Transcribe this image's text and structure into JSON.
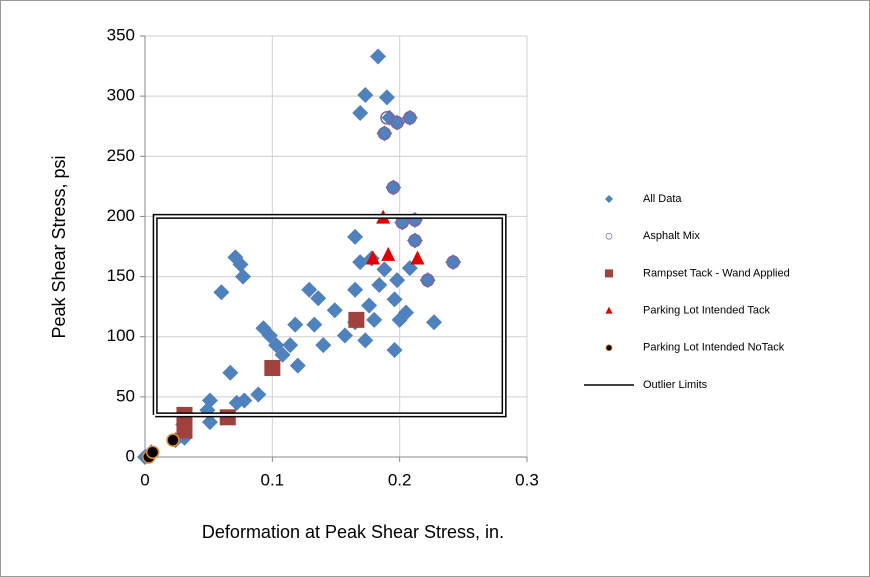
{
  "chart_data": {
    "type": "scatter",
    "x_label": "Deformation at Peak Shear Stress, in.",
    "y_label": "Peak Shear Stress, psi",
    "xlim": [
      0,
      0.3
    ],
    "ylim": [
      0,
      350
    ],
    "xticks": [
      0,
      0.1,
      0.2,
      0.3
    ],
    "yticks": [
      0,
      50,
      100,
      150,
      200,
      250,
      300,
      350
    ],
    "grid": true,
    "legend": "right",
    "series": [
      {
        "name": "All Data",
        "marker": "diamond",
        "color": "#4f81bd",
        "x": [
          0.183,
          0.173,
          0.19,
          0.169,
          0.192,
          0.208,
          0.198,
          0.188,
          0.195,
          0.202,
          0.212,
          0.165,
          0.212,
          0.242,
          0.071,
          0.075,
          0.077,
          0.06,
          0.169,
          0.178,
          0.188,
          0.208,
          0.184,
          0.165,
          0.198,
          0.222,
          0.196,
          0.176,
          0.2,
          0.205,
          0.227,
          0.165,
          0.18,
          0.173,
          0.196,
          0.157,
          0.149,
          0.129,
          0.136,
          0.133,
          0.14,
          0.118,
          0.114,
          0.12,
          0.093,
          0.098,
          0.103,
          0.108,
          0.067,
          0.089,
          0.078,
          0.072,
          0.051,
          0.049,
          0.051,
          0.03,
          0.031,
          0.024,
          0.005,
          0.0
        ],
        "y": [
          333,
          301,
          299,
          286,
          282,
          282,
          278,
          269,
          224,
          195,
          197,
          183,
          180,
          162,
          166,
          160,
          150,
          137,
          162,
          165,
          156,
          157,
          143,
          139,
          147,
          147,
          131,
          126,
          114,
          120,
          112,
          112,
          114,
          97,
          89,
          101,
          122,
          139,
          132,
          110,
          93,
          110,
          93,
          76,
          107,
          101,
          93,
          85,
          70,
          52,
          47,
          45,
          47,
          39,
          29,
          27,
          16,
          14,
          4,
          0
        ]
      },
      {
        "name": "Asphalt Mix",
        "marker": "circle-open",
        "color": "#8064a2",
        "x": [
          0.19,
          0.208,
          0.198,
          0.188,
          0.195,
          0.202,
          0.212,
          0.212,
          0.242,
          0.222
        ],
        "y": [
          282,
          282,
          278,
          269,
          224,
          195,
          197,
          180,
          162,
          147
        ]
      },
      {
        "name": "Rampset Tack - Wand Applied",
        "marker": "square",
        "color": "#a0413e",
        "x": [
          0.031,
          0.031,
          0.065,
          0.1,
          0.166
        ],
        "y": [
          35,
          22,
          33,
          74,
          114
        ]
      },
      {
        "name": "Parking Lot Intended Tack",
        "marker": "triangle",
        "color": "#e00000",
        "x": [
          0.187,
          0.179,
          0.191,
          0.214
        ],
        "y": [
          199,
          165,
          168,
          165
        ]
      },
      {
        "name": "Parking Lot Intended NoTack",
        "marker": "circle",
        "color": "#000000",
        "x": [
          0.003,
          0.006,
          0.022
        ],
        "y": [
          0,
          4,
          14
        ]
      },
      {
        "name": "Outlier Limits",
        "marker": "line",
        "color": "#000000",
        "x": [
          0.008,
          0.282,
          0.282,
          0.008,
          0.008
        ],
        "y": [
          35,
          35,
          200,
          200,
          35
        ]
      }
    ]
  }
}
